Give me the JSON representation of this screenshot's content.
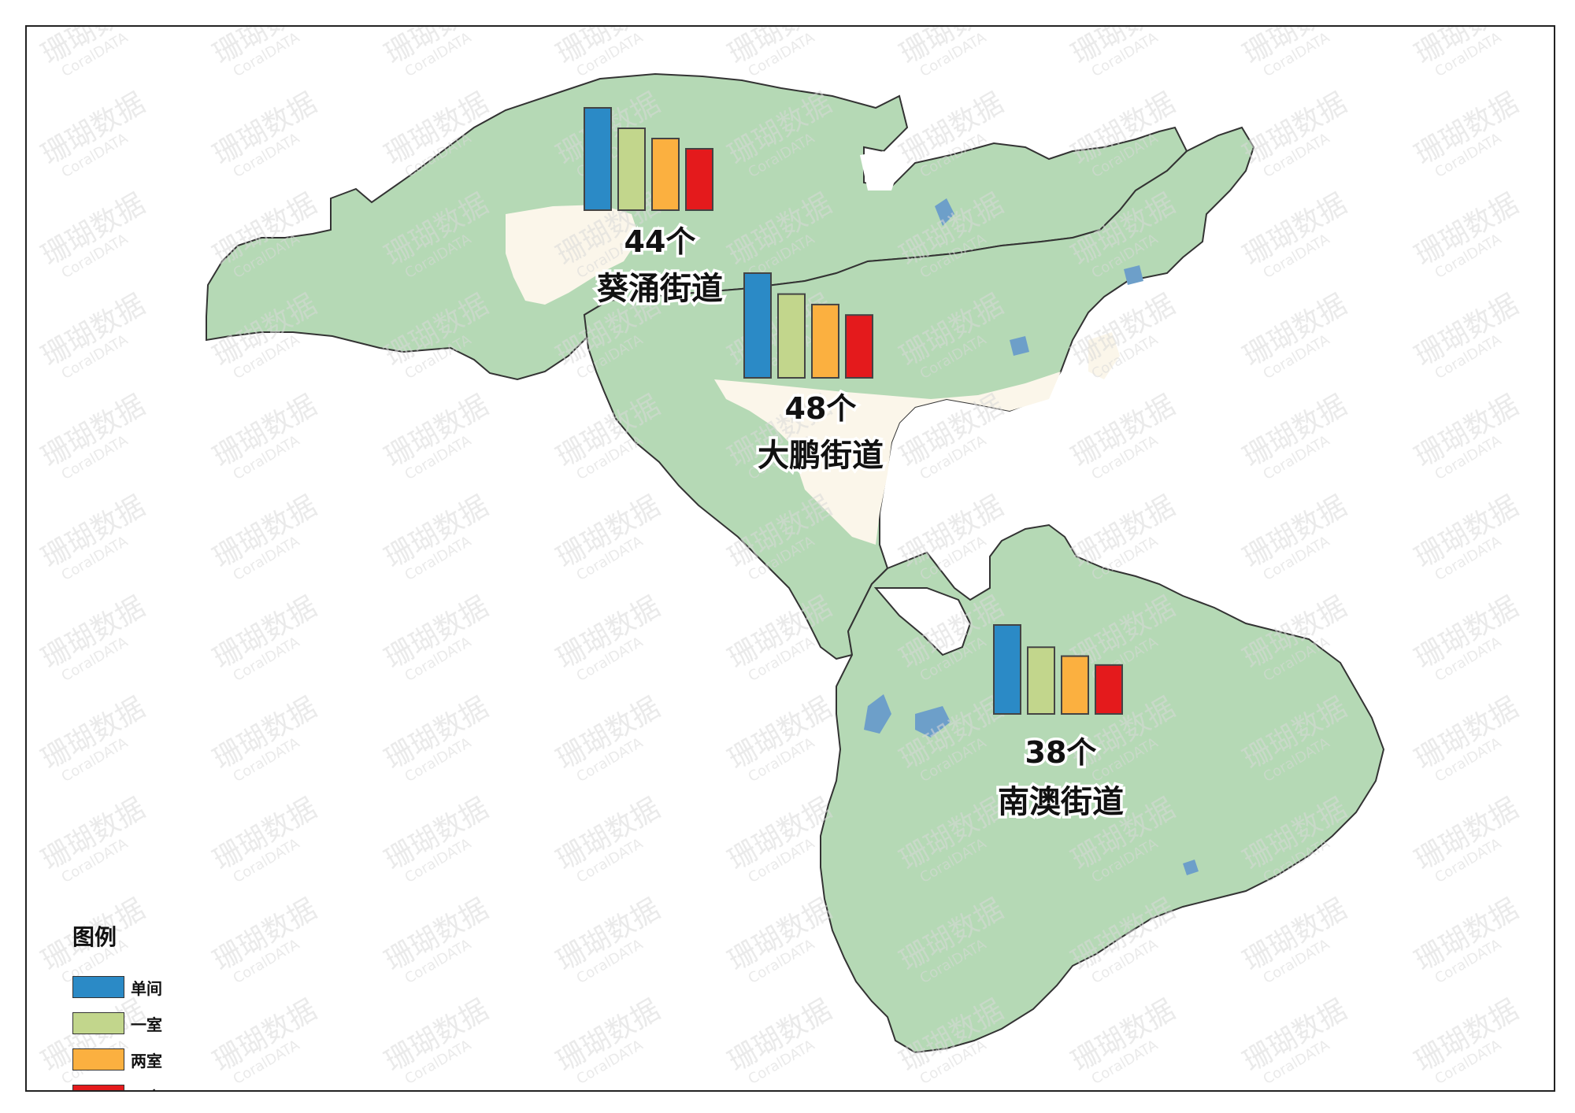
{
  "legend": {
    "title": "图例",
    "items": [
      {
        "label": "单间",
        "color": "#2b8ac6"
      },
      {
        "label": "一室",
        "color": "#c2d68c"
      },
      {
        "label": "两室",
        "color": "#fbb040"
      },
      {
        "label": "三室",
        "color": "#e41a1c"
      }
    ]
  },
  "regions": [
    {
      "name": "葵涌街道",
      "count_label": "44个",
      "values": [
        1.0,
        0.8,
        0.7,
        0.6
      ]
    },
    {
      "name": "大鹏街道",
      "count_label": "48个",
      "values": [
        1.0,
        0.8,
        0.7,
        0.6
      ]
    },
    {
      "name": "南澳街道",
      "count_label": "38个",
      "values": [
        1.0,
        0.75,
        0.65,
        0.55
      ]
    }
  ],
  "watermark": {
    "cn": "珊瑚数据",
    "en": "CoralDATA"
  },
  "colors": {
    "land": "#b5d9b5",
    "urban": "#fbf6ea",
    "water": "#6d9fc9",
    "border": "#333333"
  }
}
